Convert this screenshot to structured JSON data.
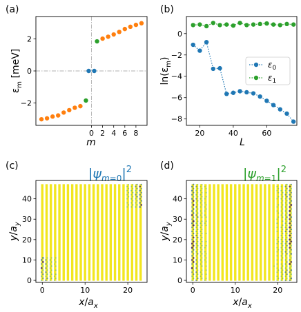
{
  "colors": {
    "blue": "#1f77b4",
    "orange": "#ff7f0e",
    "green": "#2ca02c",
    "yellow": "#f2e61f",
    "gray": "#b0b0b0"
  },
  "panel_labels": {
    "a": "(a)",
    "b": "(b)",
    "c": "(c)",
    "d": "(d)"
  },
  "chart_data": [
    {
      "panel": "a",
      "type": "scatter",
      "xlabel": "m",
      "ylabel": "εm [meV]",
      "xlim": [
        -10,
        10
      ],
      "ylim": [
        -3.4,
        3.4
      ],
      "xticks": [
        0,
        2,
        4,
        6,
        8
      ],
      "yticks": [
        -2,
        0,
        2
      ],
      "reference_lines": {
        "x": 0,
        "y": 0,
        "style": "dash-dot"
      },
      "series": [
        {
          "color": "orange",
          "x": [
            -9,
            -8,
            -7,
            -6,
            -5,
            -4,
            -3,
            -2,
            2,
            3,
            4,
            5,
            6,
            7,
            8,
            9
          ],
          "y": [
            -3.02,
            -2.96,
            -2.85,
            -2.78,
            -2.6,
            -2.45,
            -2.3,
            -2.2,
            2.02,
            2.14,
            2.28,
            2.44,
            2.62,
            2.76,
            2.88,
            2.98
          ]
        },
        {
          "color": "green",
          "x": [
            -1,
            1
          ],
          "y": [
            -1.85,
            1.85
          ]
        },
        {
          "color": "blue",
          "x": [
            -0.5,
            0.5
          ],
          "y": [
            0,
            0
          ]
        }
      ]
    },
    {
      "panel": "b",
      "type": "line",
      "xlabel": "L",
      "ylabel": "ln(εm)",
      "xlim": [
        12,
        78
      ],
      "ylim": [
        -8.6,
        1.6
      ],
      "xticks": [
        20,
        40,
        60
      ],
      "yticks": [
        -8,
        -6,
        -4,
        -2,
        0
      ],
      "legend": {
        "placement": "right",
        "entries": [
          "ε0",
          "ε1"
        ]
      },
      "series": [
        {
          "name": "ε0",
          "color": "blue",
          "linestyle": "dotted",
          "x": [
            16,
            20,
            24,
            28,
            32,
            36,
            40,
            44,
            48,
            52,
            56,
            60,
            64,
            68,
            72,
            76
          ],
          "y": [
            -1.05,
            -1.6,
            -0.8,
            -3.3,
            -3.25,
            -5.65,
            -5.55,
            -5.4,
            -5.5,
            -5.6,
            -5.9,
            -6.3,
            -6.7,
            -7.1,
            -7.5,
            -8.25
          ]
        },
        {
          "name": "ε1",
          "color": "green",
          "linestyle": "dotted",
          "x": [
            16,
            20,
            24,
            28,
            32,
            36,
            40,
            44,
            48,
            52,
            56,
            60,
            64,
            68,
            72,
            76
          ],
          "y": [
            0.8,
            0.85,
            0.7,
            1.0,
            0.8,
            0.85,
            0.75,
            1.0,
            0.8,
            0.85,
            0.9,
            0.95,
            0.85,
            0.8,
            0.9,
            0.85
          ]
        }
      ]
    },
    {
      "panel": "c",
      "type": "heatmap",
      "title": "|ψm=0|²",
      "title_color": "blue",
      "xlabel": "x/ax",
      "ylabel": "y/ay",
      "xlim": [
        -1.5,
        24.5
      ],
      "ylim": [
        -1,
        49
      ],
      "xticks": [
        0,
        10,
        20
      ],
      "yticks": [
        0,
        10,
        20,
        30,
        40
      ],
      "grid_size": [
        24,
        48
      ]
    },
    {
      "panel": "d",
      "type": "heatmap",
      "title": "|ψm=1|²",
      "title_color": "green",
      "xlabel": "x/ax",
      "ylabel": "y/ay",
      "xlim": [
        -1.5,
        24.5
      ],
      "ylim": [
        -1,
        49
      ],
      "xticks": [
        0,
        10,
        20
      ],
      "yticks": [
        0,
        10,
        20,
        30,
        40
      ],
      "grid_size": [
        24,
        48
      ]
    }
  ]
}
